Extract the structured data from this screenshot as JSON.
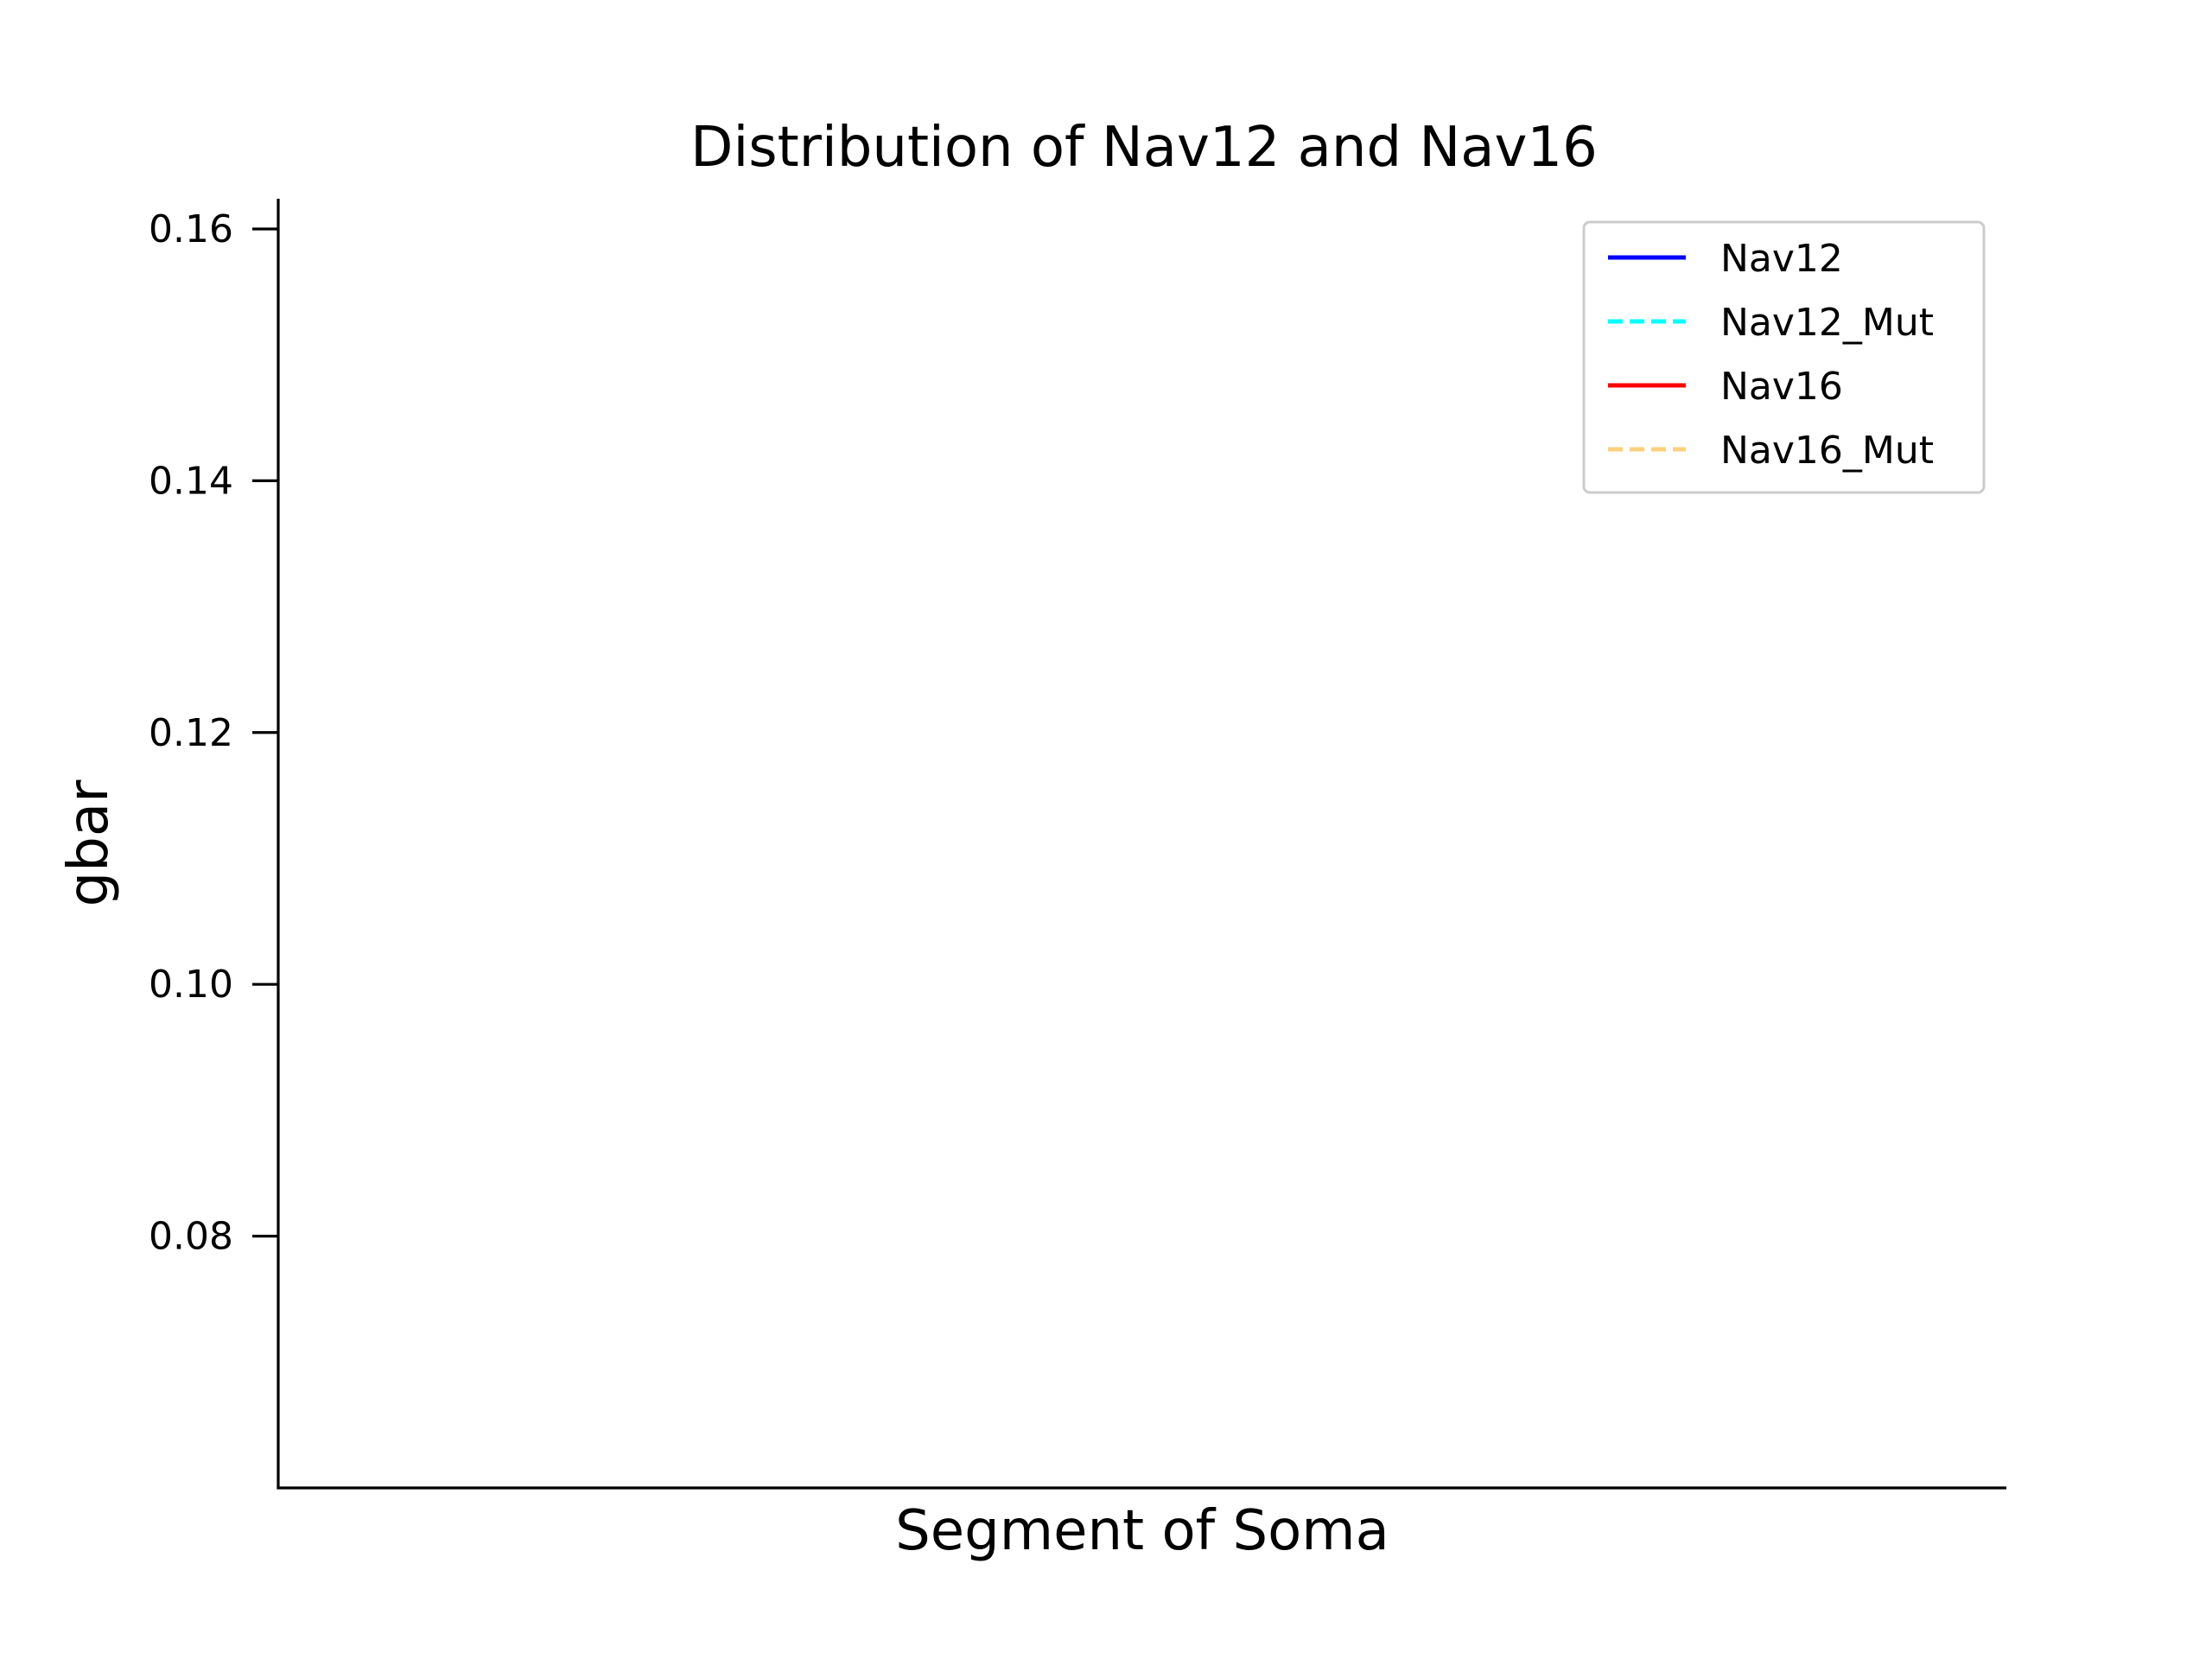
{
  "chart_data": {
    "type": "line",
    "title": "Distribution of Nav12 and Nav16",
    "xlabel": "Segment of Soma",
    "ylabel": "gbar",
    "ylim": [
      0.06,
      0.1624
    ],
    "yticks": [
      0.08,
      0.1,
      0.12,
      0.14,
      0.16
    ],
    "ytick_labels": [
      "0.08",
      "0.10",
      "0.12",
      "0.14",
      "0.16"
    ],
    "xticks": [],
    "grid": false,
    "legend_position": "top-right",
    "series": [
      {
        "name": "Nav12",
        "color": "#0000ff",
        "style": "solid",
        "x": [],
        "y": []
      },
      {
        "name": "Nav12_Mut",
        "color": "#00ffff",
        "style": "dashed",
        "x": [],
        "y": []
      },
      {
        "name": "Nav16",
        "color": "#ff0000",
        "style": "solid",
        "x": [],
        "y": []
      },
      {
        "name": "Nav16_Mut",
        "color": "#fdd17c",
        "style": "dashed",
        "x": [],
        "y": []
      }
    ]
  }
}
